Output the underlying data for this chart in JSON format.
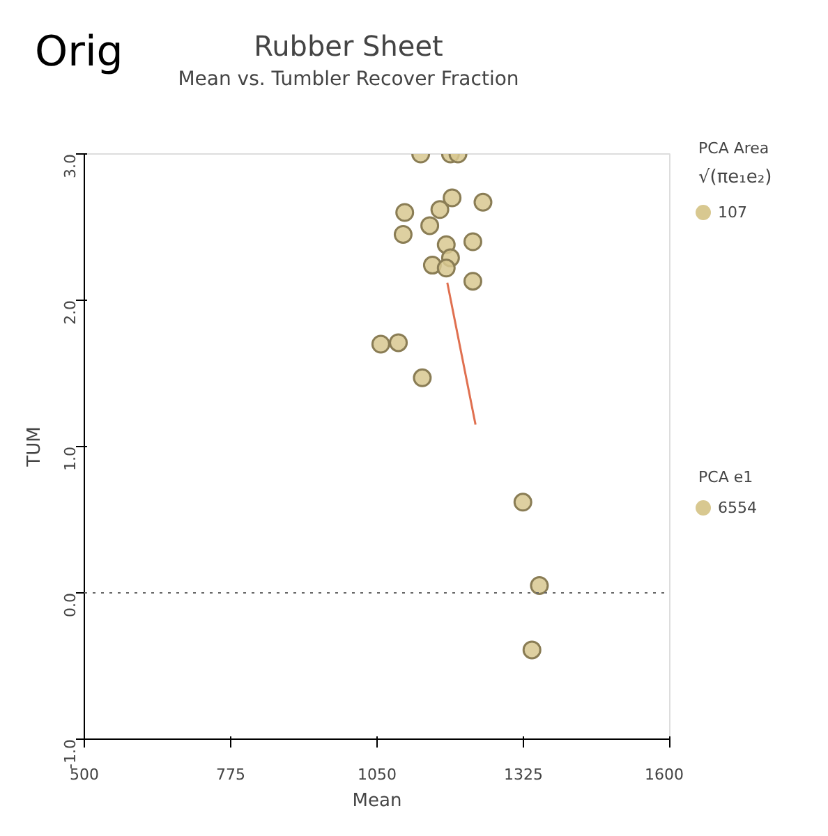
{
  "chart_data": {
    "type": "scatter",
    "title": "Rubber Sheet",
    "subtitle": "Mean vs. Tumbler Recover Fraction",
    "xlabel": "Mean",
    "ylabel": "TUM",
    "annotations": [
      "Orig",
      "PCA Area",
      "√(πe₁e₂)",
      "107",
      "PCA e1",
      "6554"
    ],
    "series": [
      {
        "color": "#d8c890",
        "x": [
          1132,
          1188,
          1202,
          1102,
          1168,
          1191,
          1249,
          1099,
          1149,
          1180,
          1230,
          1188,
          1154,
          1180,
          1230,
          1057,
          1090,
          1135,
          1324,
          1355,
          1341
        ],
        "values": [
          3.0,
          3.0,
          3.0,
          2.6,
          2.62,
          2.7,
          2.67,
          2.45,
          2.51,
          2.38,
          2.4,
          2.29,
          2.24,
          2.22,
          2.13,
          1.7,
          1.71,
          1.47,
          0.62,
          0.05,
          -0.39
        ]
      },
      {
        "type": "line",
        "marker": "none",
        "color": "#e07050",
        "x": [
          1182,
          1235
        ],
        "values": [
          2.12,
          1.15
        ]
      }
    ],
    "xlim": [
      500,
      1600
    ],
    "ylim": [
      -1.0,
      3.0
    ],
    "xticks": [
      500,
      775,
      1050,
      1325,
      1600
    ],
    "yticks": [
      {
        "value": -1,
        "label": "-1.0"
      },
      {
        "value": 0,
        "label": "0.0"
      },
      {
        "value": 1,
        "label": "1.0"
      },
      {
        "value": 2,
        "label": "2.0"
      },
      {
        "value": 3,
        "label": "3.0"
      }
    ],
    "ref_lines": [
      {
        "axis": "y",
        "value": 0,
        "line_style": "dotted",
        "color": "#666666"
      }
    ],
    "marker": "circle",
    "grid": false,
    "legend": false
  }
}
